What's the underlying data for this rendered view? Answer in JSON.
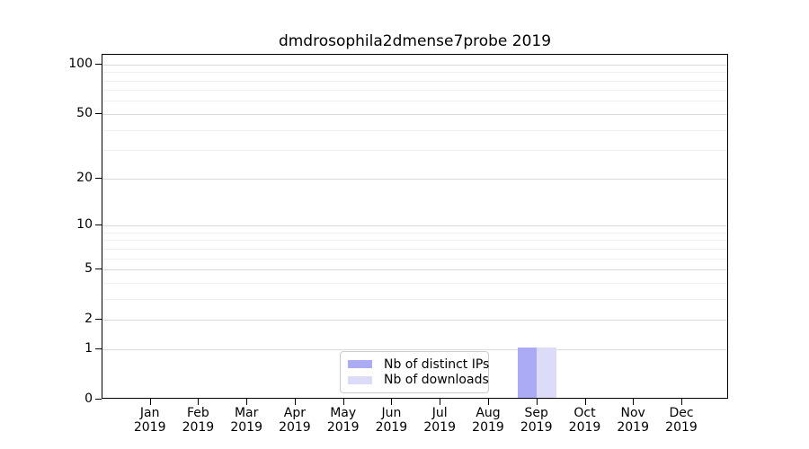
{
  "chart_data": {
    "type": "bar",
    "title": "dmdrosophila2dmense7probe 2019",
    "xlabel": "",
    "ylabel": "",
    "yscale": "log1p",
    "ylim": [
      0,
      113
    ],
    "grid": "horizontal, major and minor gridlines",
    "legend_position": "lower center inside plot",
    "categories": [
      "Jan 2019",
      "Feb 2019",
      "Mar 2019",
      "Apr 2019",
      "May 2019",
      "Jun 2019",
      "Jul 2019",
      "Aug 2019",
      "Sep 2019",
      "Oct 2019",
      "Nov 2019",
      "Dec 2019"
    ],
    "x_tick_lines": [
      {
        "month": "Jan",
        "year": "2019"
      },
      {
        "month": "Feb",
        "year": "2019"
      },
      {
        "month": "Mar",
        "year": "2019"
      },
      {
        "month": "Apr",
        "year": "2019"
      },
      {
        "month": "May",
        "year": "2019"
      },
      {
        "month": "Jun",
        "year": "2019"
      },
      {
        "month": "Jul",
        "year": "2019"
      },
      {
        "month": "Aug",
        "year": "2019"
      },
      {
        "month": "Sep",
        "year": "2019"
      },
      {
        "month": "Oct",
        "year": "2019"
      },
      {
        "month": "Nov",
        "year": "2019"
      },
      {
        "month": "Dec",
        "year": "2019"
      }
    ],
    "y_major_ticks": [
      0,
      1,
      2,
      5,
      10,
      20,
      50,
      100
    ],
    "y_minor_ticks": [
      3,
      4,
      6,
      7,
      8,
      9,
      30,
      40,
      60,
      70,
      80,
      90
    ],
    "series": [
      {
        "name": "Nb of distinct IPs",
        "color": "#aaaaf5",
        "values": [
          0,
          0,
          0,
          0,
          0,
          0,
          0,
          0,
          1,
          0,
          0,
          0
        ]
      },
      {
        "name": "Nb of downloads",
        "color": "#dcdcf9",
        "values": [
          0,
          0,
          0,
          0,
          0,
          0,
          0,
          0,
          1,
          0,
          0,
          0
        ]
      }
    ]
  },
  "colors": {
    "spine": "#000000",
    "grid_major": "#d9d9d9",
    "grid_minor": "#efefef",
    "background": "#ffffff"
  }
}
